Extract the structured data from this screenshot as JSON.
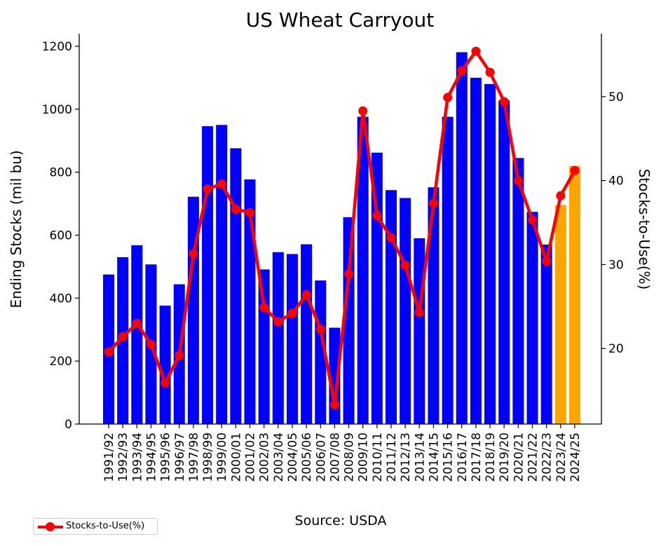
{
  "colors": {
    "bar": "#0000ff",
    "bar_projected": "#ffa500",
    "line": "#ff0000"
  },
  "footer": {
    "source": "Source: USDA"
  },
  "legend": {
    "label": "Stocks-to-Use(%)"
  },
  "chart_data": {
    "type": "bar",
    "title": "US Wheat Carryout",
    "xlabel": "",
    "ylabel": "Ending Stocks (mil bu)",
    "y2label": "Stocks-to-Use(%)",
    "ylim": [
      0,
      1240
    ],
    "y2lim": [
      11,
      57.5
    ],
    "yticks": [
      0,
      200,
      400,
      600,
      800,
      1000,
      1200
    ],
    "y2ticks": [
      20,
      30,
      40,
      50
    ],
    "grid": false,
    "legend_position": "bottom-left",
    "categories": [
      "1991/92",
      "1992/93",
      "1993/94",
      "1994/95",
      "1995/96",
      "1996/97",
      "1997/98",
      "1998/99",
      "1999/00",
      "2000/01",
      "2001/02",
      "2002/03",
      "2003/04",
      "2004/05",
      "2005/06",
      "2006/07",
      "2007/08",
      "2008/09",
      "2009/10",
      "2010/11",
      "2011/12",
      "2012/13",
      "2013/14",
      "2014/15",
      "2015/16",
      "2016/17",
      "2017/18",
      "2018/19",
      "2019/20",
      "2020/21",
      "2021/22",
      "2022/23",
      "2023/24",
      "2024/25"
    ],
    "series": [
      {
        "kind": "bar",
        "axis": "left",
        "values": [
          475,
          530,
          568,
          507,
          376,
          444,
          722,
          946,
          950,
          876,
          777,
          491,
          546,
          540,
          571,
          456,
          306,
          657,
          976,
          862,
          743,
          718,
          590,
          752,
          976,
          1181,
          1100,
          1080,
          1028,
          845,
          674,
          570,
          696,
          820
        ],
        "projected_from_index": 32
      },
      {
        "name": "Stocks-to-Use(%)",
        "kind": "line",
        "axis": "right",
        "values": [
          19.6,
          21.4,
          23,
          20.5,
          15.9,
          19.2,
          31.3,
          39,
          39.6,
          36.6,
          36.2,
          24.9,
          23.2,
          24.2,
          26.4,
          22.3,
          13.3,
          28.9,
          48.3,
          35.8,
          33.2,
          29.9,
          24.3,
          37.3,
          49.9,
          53.1,
          55.4,
          52.9,
          49.4,
          40,
          35.3,
          30.4,
          38.2,
          41.2
        ]
      }
    ]
  }
}
